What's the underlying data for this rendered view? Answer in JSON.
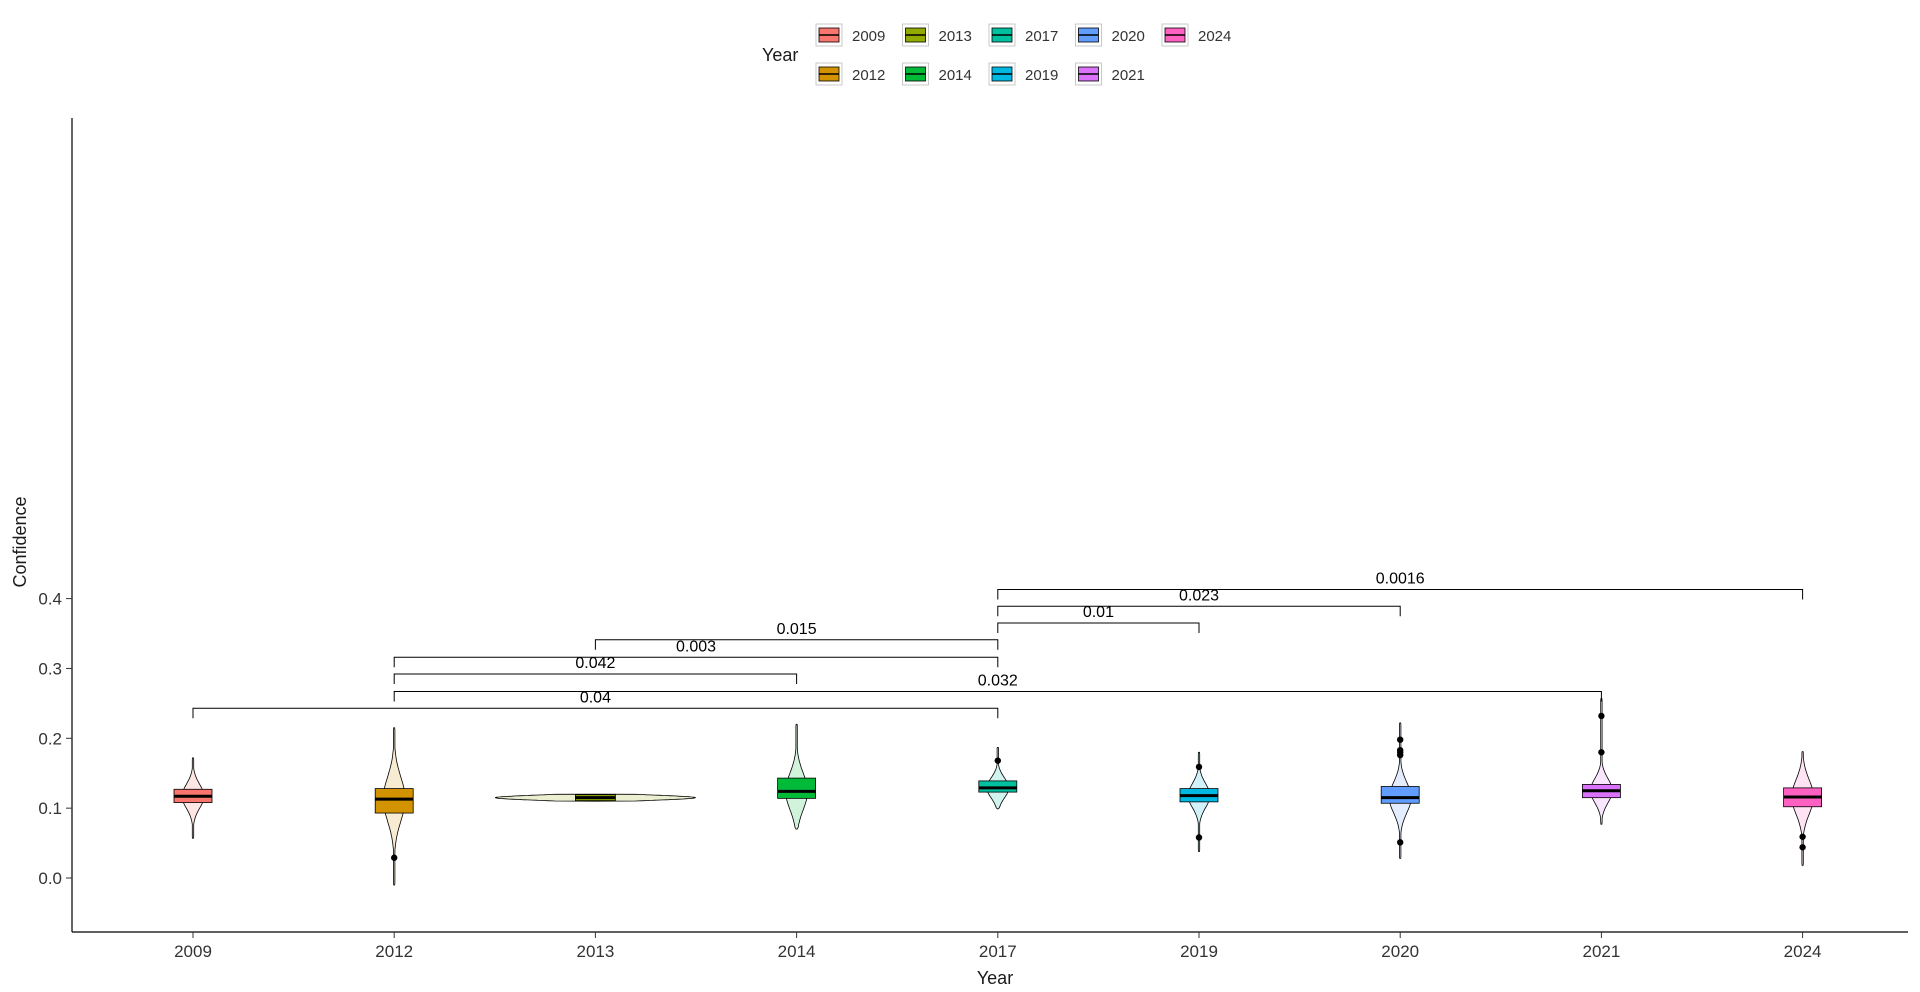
{
  "chart_data": {
    "type": "violin-boxplot",
    "xlabel": "Year",
    "ylabel": "Confidence",
    "ylim": [
      -0.03,
      0.435
    ],
    "yticks": [
      0.0,
      0.1,
      0.2,
      0.3,
      0.4
    ],
    "ytick_labels": [
      "0.0",
      "0.1",
      "0.2",
      "0.3",
      "0.4"
    ],
    "grid": false,
    "legend": {
      "title": "Year",
      "position": "top",
      "entries": [
        "2009",
        "2013",
        "2017",
        "2020",
        "2024",
        "2012",
        "2014",
        "2019",
        "2021"
      ]
    },
    "categories": [
      "2009",
      "2012",
      "2013",
      "2014",
      "2017",
      "2019",
      "2020",
      "2021",
      "2024"
    ],
    "colors": {
      "2009": "#F8766D",
      "2012": "#D39200",
      "2013": "#93AA00",
      "2014": "#00BA38",
      "2017": "#00C19F",
      "2019": "#00B9E3",
      "2020": "#619CFF",
      "2021": "#DB72FB",
      "2024": "#FF61C3"
    },
    "groups": [
      {
        "year": "2009",
        "min": 0.057,
        "q1": 0.108,
        "median": 0.117,
        "q3": 0.127,
        "max": 0.172,
        "outliers": []
      },
      {
        "year": "2012",
        "min": -0.01,
        "q1": 0.093,
        "median": 0.113,
        "q3": 0.128,
        "max": 0.215,
        "outliers": [
          0.029
        ]
      },
      {
        "year": "2013",
        "min": 0.11,
        "q1": 0.113,
        "median": 0.115,
        "q3": 0.117,
        "max": 0.12,
        "outliers": []
      },
      {
        "year": "2014",
        "min": 0.07,
        "q1": 0.114,
        "median": 0.124,
        "q3": 0.143,
        "max": 0.22,
        "outliers": []
      },
      {
        "year": "2017",
        "min": 0.099,
        "q1": 0.123,
        "median": 0.129,
        "q3": 0.139,
        "max": 0.187,
        "outliers": [
          0.168
        ]
      },
      {
        "year": "2019",
        "min": 0.038,
        "q1": 0.109,
        "median": 0.118,
        "q3": 0.128,
        "max": 0.18,
        "outliers": [
          0.058,
          0.159
        ]
      },
      {
        "year": "2020",
        "min": 0.028,
        "q1": 0.107,
        "median": 0.115,
        "q3": 0.131,
        "max": 0.222,
        "outliers": [
          0.051,
          0.176,
          0.18,
          0.183,
          0.198
        ]
      },
      {
        "year": "2021",
        "min": 0.077,
        "q1": 0.115,
        "median": 0.125,
        "q3": 0.134,
        "max": 0.257,
        "outliers": [
          0.18,
          0.232
        ]
      },
      {
        "year": "2024",
        "min": 0.018,
        "q1": 0.102,
        "median": 0.116,
        "q3": 0.129,
        "max": 0.181,
        "outliers": [
          0.044,
          0.059
        ]
      }
    ],
    "comparisons": [
      {
        "from": "2017",
        "to": "2024",
        "label": "0.0016",
        "y": 0.413
      },
      {
        "from": "2017",
        "to": "2020",
        "label": "0.023",
        "y": 0.389
      },
      {
        "from": "2017",
        "to": "2019",
        "label": "0.01",
        "y": 0.365
      },
      {
        "from": "2013",
        "to": "2017",
        "label": "0.015",
        "y": 0.341
      },
      {
        "from": "2012",
        "to": "2017",
        "label": "0.003",
        "y": 0.316
      },
      {
        "from": "2012",
        "to": "2014",
        "label": "0.042",
        "y": 0.292
      },
      {
        "from": "2012",
        "to": "2021",
        "label": "0.032",
        "y": 0.267
      },
      {
        "from": "2009",
        "to": "2017",
        "label": "0.04",
        "y": 0.243
      }
    ]
  }
}
